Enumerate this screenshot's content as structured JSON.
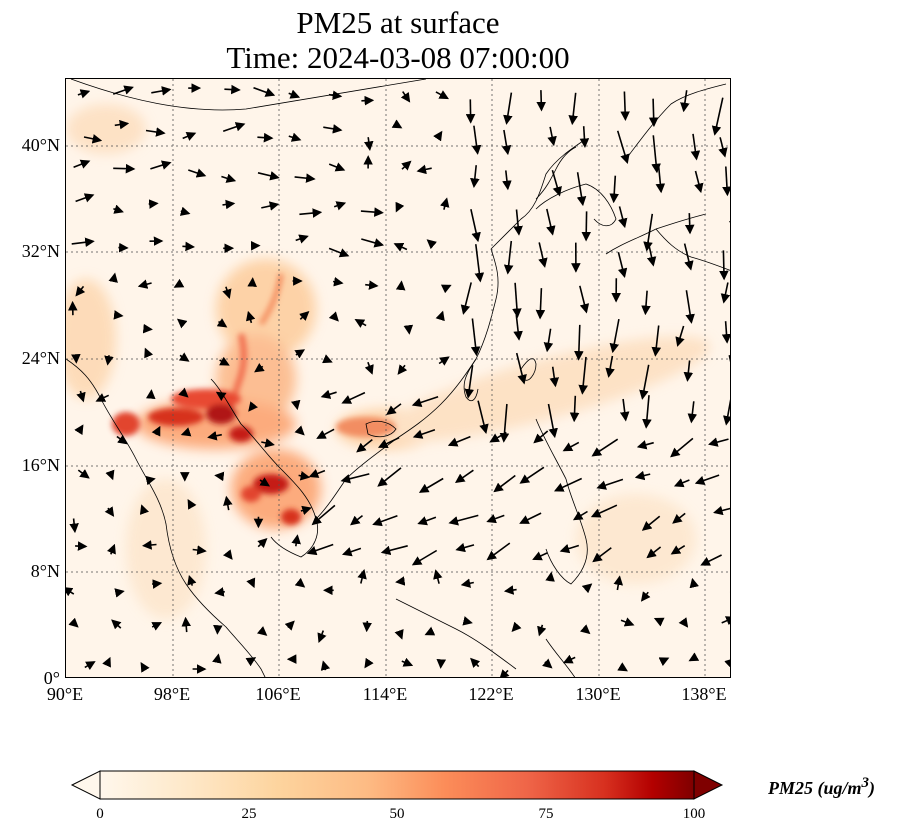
{
  "title": {
    "line1": "PM25 at surface",
    "line2": "Time: 2024-03-08 07:00:00"
  },
  "map": {
    "variable": "PM25",
    "lon_range": [
      90,
      140
    ],
    "lat_range": [
      0,
      45
    ],
    "lat_ticks": [
      "0°",
      "8°N",
      "16°N",
      "24°N",
      "32°N",
      "40°N"
    ],
    "lon_ticks": [
      "90°E",
      "98°E",
      "106°E",
      "114°E",
      "122°E",
      "130°E",
      "138°E"
    ],
    "gridlines": true,
    "overlay": "wind vectors",
    "background_color": "#fef4e8",
    "hotspot_color": "#b01414"
  },
  "colorbar": {
    "label": "PM25 (ug/m",
    "label_sup": "3",
    "label_close": ")",
    "ticks": [
      "0",
      "25",
      "50",
      "75",
      "100"
    ],
    "colormap": "OrRd",
    "extend": "both"
  }
}
